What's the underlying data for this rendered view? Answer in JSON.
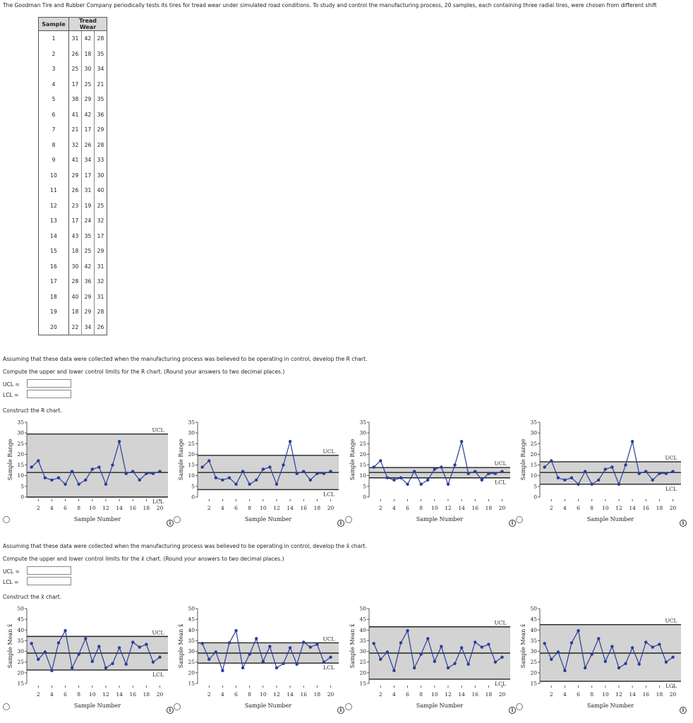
{
  "intro": "The Goodman Tire and Rubber Company periodically tests its tires for tread wear under simulated road conditions. To study and control the manufacturing process, 20 samples, each containing three radial tires, were chosen from different shift",
  "table": {
    "header_sample": "Sample",
    "header_tread": "Tread Wear",
    "rows": [
      [
        "1",
        "31",
        "42",
        "28"
      ],
      [
        "2",
        "26",
        "18",
        "35"
      ],
      [
        "3",
        "25",
        "30",
        "34"
      ],
      [
        "4",
        "17",
        "25",
        "21"
      ],
      [
        "5",
        "38",
        "29",
        "35"
      ],
      [
        "6",
        "41",
        "42",
        "36"
      ],
      [
        "7",
        "21",
        "17",
        "29"
      ],
      [
        "8",
        "32",
        "26",
        "28"
      ],
      [
        "9",
        "41",
        "34",
        "33"
      ],
      [
        "10",
        "29",
        "17",
        "30"
      ],
      [
        "11",
        "26",
        "31",
        "40"
      ],
      [
        "12",
        "23",
        "19",
        "25"
      ],
      [
        "13",
        "17",
        "24",
        "32"
      ],
      [
        "14",
        "43",
        "35",
        "17"
      ],
      [
        "15",
        "18",
        "25",
        "29"
      ],
      [
        "16",
        "30",
        "42",
        "31"
      ],
      [
        "17",
        "28",
        "36",
        "32"
      ],
      [
        "18",
        "40",
        "29",
        "31"
      ],
      [
        "19",
        "18",
        "29",
        "28"
      ],
      [
        "20",
        "22",
        "34",
        "26"
      ]
    ]
  },
  "r_section": {
    "assume": "Assuming that these data were collected when the manufacturing process was believed to be operating in control, develop the R chart.",
    "compute": "Compute the upper and lower control limits for the R chart. (Round your answers to two decimal places.)",
    "ucl_label": "UCL =",
    "lcl_label": "LCL =",
    "ucl_value": "",
    "lcl_value": "",
    "construct": "Construct the R chart."
  },
  "x_section": {
    "assume": "Assuming that these data were collected when the manufacturing process was believed to be operating in control, develop the x̄ chart.",
    "compute": "Compute the upper and lower control limits for the x̄ chart. (Round your answers to two decimal places.)",
    "ucl_label": "UCL =",
    "lcl_label": "LCL =",
    "ucl_value": "",
    "lcl_value": "",
    "construct": "Construct the x̄ chart."
  },
  "chart_data": [
    {
      "type": "line",
      "ylabel": "Sample Range",
      "xlabel": "Sample Number",
      "ylim": [
        0,
        35
      ],
      "yticks": [
        0,
        5,
        10,
        15,
        20,
        25,
        30,
        35
      ],
      "xticks": [
        2,
        4,
        6,
        8,
        10,
        12,
        14,
        16,
        18,
        20
      ],
      "x": [
        1,
        2,
        3,
        4,
        5,
        6,
        7,
        8,
        9,
        10,
        11,
        12,
        13,
        14,
        15,
        16,
        17,
        18,
        19,
        20
      ],
      "values": [
        14,
        17,
        9,
        8,
        9,
        6,
        12,
        6,
        8,
        13,
        14,
        6,
        15,
        26,
        11,
        12,
        8,
        11,
        11,
        12
      ],
      "ucl": 29.5,
      "center": 11.5,
      "lcl": 0,
      "ucl_label": "UCL",
      "lcl_label": "LCL"
    },
    {
      "type": "line",
      "ylabel": "Sample Range",
      "xlabel": "Sample Number",
      "ylim": [
        0,
        35
      ],
      "yticks": [
        0,
        5,
        10,
        15,
        20,
        25,
        30,
        35
      ],
      "xticks": [
        2,
        4,
        6,
        8,
        10,
        12,
        14,
        16,
        18,
        20
      ],
      "x": [
        1,
        2,
        3,
        4,
        5,
        6,
        7,
        8,
        9,
        10,
        11,
        12,
        13,
        14,
        15,
        16,
        17,
        18,
        19,
        20
      ],
      "values": [
        14,
        17,
        9,
        8,
        9,
        6,
        12,
        6,
        8,
        13,
        14,
        6,
        15,
        26,
        11,
        12,
        8,
        11,
        11,
        12
      ],
      "ucl": 19.5,
      "center": 11.5,
      "lcl": 3.5,
      "ucl_label": "UCL",
      "lcl_label": "LCL"
    },
    {
      "type": "line",
      "ylabel": "Sample Range",
      "xlabel": "Sample Number",
      "ylim": [
        0,
        35
      ],
      "yticks": [
        0,
        5,
        10,
        15,
        20,
        25,
        30,
        35
      ],
      "xticks": [
        2,
        4,
        6,
        8,
        10,
        12,
        14,
        16,
        18,
        20
      ],
      "x": [
        1,
        2,
        3,
        4,
        5,
        6,
        7,
        8,
        9,
        10,
        11,
        12,
        13,
        14,
        15,
        16,
        17,
        18,
        19,
        20
      ],
      "values": [
        14,
        17,
        9,
        8,
        9,
        6,
        12,
        6,
        8,
        13,
        14,
        6,
        15,
        26,
        11,
        12,
        8,
        11,
        11,
        12
      ],
      "ucl": 13.8,
      "center": 11.5,
      "lcl": 9,
      "ucl_label": "UCL",
      "lcl_label": "LCL"
    },
    {
      "type": "line",
      "ylabel": "Sample Range",
      "xlabel": "Sample Number",
      "ylim": [
        0,
        35
      ],
      "yticks": [
        0,
        5,
        10,
        15,
        20,
        25,
        30,
        35
      ],
      "xticks": [
        2,
        4,
        6,
        8,
        10,
        12,
        14,
        16,
        18,
        20
      ],
      "x": [
        1,
        2,
        3,
        4,
        5,
        6,
        7,
        8,
        9,
        10,
        11,
        12,
        13,
        14,
        15,
        16,
        17,
        18,
        19,
        20
      ],
      "values": [
        14,
        17,
        9,
        8,
        9,
        6,
        12,
        6,
        8,
        13,
        14,
        6,
        15,
        26,
        11,
        12,
        8,
        11,
        11,
        12
      ],
      "ucl": 16.5,
      "center": 11.5,
      "lcl": 6,
      "ucl_label": "UCL",
      "lcl_label": "LCL"
    },
    {
      "type": "line",
      "ylabel": "Sample Mean x̄",
      "xlabel": "Sample Number",
      "ylim": [
        15,
        50
      ],
      "yticks": [
        15,
        20,
        25,
        30,
        35,
        40,
        45,
        50
      ],
      "xticks": [
        2,
        4,
        6,
        8,
        10,
        12,
        14,
        16,
        18,
        20
      ],
      "x": [
        1,
        2,
        3,
        4,
        5,
        6,
        7,
        8,
        9,
        10,
        11,
        12,
        13,
        14,
        15,
        16,
        17,
        18,
        19,
        20
      ],
      "values": [
        33.7,
        26.3,
        29.7,
        21,
        34,
        39.7,
        22.3,
        28.7,
        36,
        25.3,
        32.3,
        22.3,
        24.3,
        31.7,
        24,
        34.3,
        32,
        33.3,
        25,
        27.3
      ],
      "ucl": 37,
      "center": 29.2,
      "lcl": 21.3,
      "ucl_label": "UCL",
      "lcl_label": "LCL"
    },
    {
      "type": "line",
      "ylabel": "Sample Mean x̄",
      "xlabel": "Sample Number",
      "ylim": [
        15,
        50
      ],
      "yticks": [
        15,
        20,
        25,
        30,
        35,
        40,
        45,
        50
      ],
      "xticks": [
        2,
        4,
        6,
        8,
        10,
        12,
        14,
        16,
        18,
        20
      ],
      "x": [
        1,
        2,
        3,
        4,
        5,
        6,
        7,
        8,
        9,
        10,
        11,
        12,
        13,
        14,
        15,
        16,
        17,
        18,
        19,
        20
      ],
      "values": [
        33.7,
        26.3,
        29.7,
        21,
        34,
        39.7,
        22.3,
        28.7,
        36,
        25.3,
        32.3,
        22.3,
        24.3,
        31.7,
        24,
        34.3,
        32,
        33.3,
        25,
        27.3
      ],
      "ucl": 34,
      "center": 29.2,
      "lcl": 24.5,
      "ucl_label": "UCL",
      "lcl_label": "LCL"
    },
    {
      "type": "line",
      "ylabel": "Sample Mean x̄",
      "xlabel": "Sample Number",
      "ylim": [
        15,
        50
      ],
      "yticks": [
        15,
        20,
        25,
        30,
        35,
        40,
        45,
        50
      ],
      "xticks": [
        2,
        4,
        6,
        8,
        10,
        12,
        14,
        16,
        18,
        20
      ],
      "x": [
        1,
        2,
        3,
        4,
        5,
        6,
        7,
        8,
        9,
        10,
        11,
        12,
        13,
        14,
        15,
        16,
        17,
        18,
        19,
        20
      ],
      "values": [
        33.7,
        26.3,
        29.7,
        21,
        34,
        39.7,
        22.3,
        28.7,
        36,
        25.3,
        32.3,
        22.3,
        24.3,
        31.7,
        24,
        34.3,
        32,
        33.3,
        25,
        27.3
      ],
      "ucl": 41.5,
      "center": 29.2,
      "lcl": 17,
      "ucl_label": "UCL",
      "lcl_label": "LCL"
    },
    {
      "type": "line",
      "ylabel": "Sample Mean x̄",
      "xlabel": "Sample Number",
      "ylim": [
        15,
        50
      ],
      "yticks": [
        15,
        20,
        25,
        30,
        35,
        40,
        45,
        50
      ],
      "xticks": [
        2,
        4,
        6,
        8,
        10,
        12,
        14,
        16,
        18,
        20
      ],
      "x": [
        1,
        2,
        3,
        4,
        5,
        6,
        7,
        8,
        9,
        10,
        11,
        12,
        13,
        14,
        15,
        16,
        17,
        18,
        19,
        20
      ],
      "values": [
        33.7,
        26.3,
        29.7,
        21,
        34,
        39.7,
        22.3,
        28.7,
        36,
        25.3,
        32.3,
        22.3,
        24.3,
        31.7,
        24,
        34.3,
        32,
        33.3,
        25,
        27.3
      ],
      "ucl": 42.5,
      "center": 29.2,
      "lcl": 16,
      "ucl_label": "UCL",
      "lcl_label": "LCL"
    }
  ],
  "colors": {
    "line": "#2a3d99",
    "band": "#d3d3d3",
    "limit": "#222222"
  },
  "icons": {
    "option": "radio-icon",
    "info": "info-icon",
    "info_glyph": "i"
  }
}
